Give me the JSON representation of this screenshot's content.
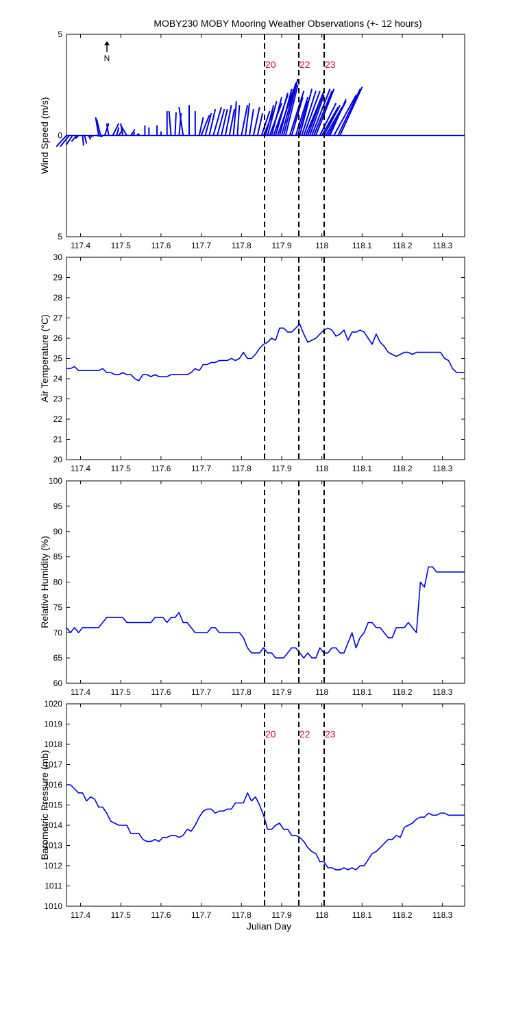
{
  "colors": {
    "series": "#0000dd",
    "marker_text": "#c8102e",
    "axis": "#000000"
  },
  "chart_data": [
    {
      "type": "line",
      "subtype": "wind-stick",
      "title": "MOBY230 MOBY Mooring Weather Observations (+- 12 hours)",
      "ylabel": "Wind Speed (m/s)",
      "xlabel": "",
      "xlim": [
        117.365,
        118.355
      ],
      "ylim": [
        -5,
        5
      ],
      "yticks": [
        -5,
        0,
        5
      ],
      "ytick_labels": [
        "5",
        "0",
        "5"
      ],
      "xticks": [
        117.4,
        117.5,
        117.6,
        117.7,
        117.8,
        117.9,
        118,
        118.1,
        118.2,
        118.3
      ],
      "north_label": "N",
      "marker_labels": [
        "20",
        "22",
        "23"
      ],
      "sticks": [
        [
          117.365,
          -0.5,
          -0.55
        ],
        [
          117.372,
          -0.45,
          -0.55
        ],
        [
          117.38,
          -0.3,
          -0.45
        ],
        [
          117.39,
          -0.25,
          -0.3
        ],
        [
          117.395,
          -0.15,
          -0.15
        ],
        [
          117.405,
          0.05,
          -0.5
        ],
        [
          117.41,
          0.1,
          -0.4
        ],
        [
          117.42,
          0.1,
          -0.2
        ],
        [
          117.425,
          0.05,
          -0.1
        ],
        [
          117.43,
          0.05,
          -0.05
        ],
        [
          117.44,
          0.3,
          -0.05
        ],
        [
          117.445,
          -0.15,
          0.9
        ],
        [
          117.45,
          -0.2,
          0.8
        ],
        [
          117.46,
          0.2,
          0.6
        ],
        [
          117.47,
          -0.1,
          0.6
        ],
        [
          117.48,
          0.3,
          0.6
        ],
        [
          117.49,
          0.1,
          0.4
        ],
        [
          117.495,
          0.2,
          0.3
        ],
        [
          117.505,
          -0.1,
          0.6
        ],
        [
          117.515,
          -0.3,
          0.5
        ],
        [
          117.525,
          0.2,
          0.3
        ],
        [
          117.53,
          0.1,
          0.15
        ],
        [
          117.54,
          0.1,
          0.1
        ],
        [
          117.545,
          0.0,
          0.1
        ],
        [
          117.56,
          0.0,
          0.5
        ],
        [
          117.57,
          0.0,
          0.4
        ],
        [
          117.59,
          0.0,
          0.5
        ],
        [
          117.6,
          0.0,
          0.2
        ],
        [
          117.615,
          0.0,
          1.2
        ],
        [
          117.625,
          -0.1,
          1.2
        ],
        [
          117.635,
          0.05,
          1.15
        ],
        [
          117.645,
          0.1,
          1.1
        ],
        [
          117.655,
          -0.2,
          1.4
        ],
        [
          117.67,
          0.0,
          1.5
        ],
        [
          117.685,
          0.0,
          1.2
        ],
        [
          117.695,
          0.2,
          0.9
        ],
        [
          117.7,
          0.4,
          1.0
        ],
        [
          117.71,
          0.3,
          1.1
        ],
        [
          117.72,
          0.3,
          1.3
        ],
        [
          117.73,
          0.4,
          1.4
        ],
        [
          117.74,
          0.35,
          1.3
        ],
        [
          117.75,
          0.3,
          1.3
        ],
        [
          117.76,
          0.3,
          1.5
        ],
        [
          117.77,
          0.25,
          1.3
        ],
        [
          117.78,
          0.15,
          1.7
        ],
        [
          117.79,
          0.1,
          1.5
        ],
        [
          117.8,
          0.3,
          1.5
        ],
        [
          117.81,
          0.2,
          1.6
        ],
        [
          117.82,
          0.2,
          1.3
        ],
        [
          117.83,
          0.3,
          1.4
        ],
        [
          117.84,
          0.25,
          1.1
        ],
        [
          117.85,
          0.4,
          1.2
        ],
        [
          117.855,
          0.5,
          1.2
        ],
        [
          117.86,
          0.4,
          1.5
        ],
        [
          117.865,
          0.45,
          1.7
        ],
        [
          117.87,
          0.6,
          1.6
        ],
        [
          117.875,
          0.5,
          1.9
        ],
        [
          117.88,
          0.7,
          2.0
        ],
        [
          117.885,
          0.6,
          2.1
        ],
        [
          117.89,
          0.8,
          2.3
        ],
        [
          117.895,
          0.6,
          2.3
        ],
        [
          117.9,
          0.7,
          2.6
        ],
        [
          117.905,
          0.7,
          2.8
        ],
        [
          117.91,
          0.6,
          2.5
        ],
        [
          117.92,
          0.7,
          2.2
        ],
        [
          117.925,
          0.55,
          1.9
        ],
        [
          117.935,
          0.6,
          1.9
        ],
        [
          117.94,
          0.5,
          1.7
        ],
        [
          117.945,
          0.6,
          2.3
        ],
        [
          117.95,
          0.7,
          2.2
        ],
        [
          117.955,
          0.8,
          2.2
        ],
        [
          117.96,
          0.9,
          2.2
        ],
        [
          117.965,
          0.8,
          2.2
        ],
        [
          117.97,
          0.7,
          2.0
        ],
        [
          117.975,
          0.9,
          2.3
        ],
        [
          117.98,
          0.9,
          2.2
        ],
        [
          117.985,
          0.9,
          2.3
        ],
        [
          117.995,
          0.8,
          1.6
        ],
        [
          118.0,
          0.8,
          1.4
        ],
        [
          118.005,
          0.8,
          1.5
        ],
        [
          118.01,
          0.8,
          1.4
        ],
        [
          118.015,
          0.9,
          1.7
        ],
        [
          118.02,
          0.8,
          1.8
        ],
        [
          118.03,
          1.1,
          2.0
        ],
        [
          118.04,
          1.1,
          2.3
        ],
        [
          118.045,
          1.1,
          2.4
        ]
      ]
    },
    {
      "type": "line",
      "ylabel": "Air Temperature (°C)",
      "xlabel": "",
      "xlim": [
        117.365,
        118.355
      ],
      "ylim": [
        20,
        30
      ],
      "yticks": [
        20,
        21,
        22,
        23,
        24,
        25,
        26,
        27,
        28,
        29,
        30
      ],
      "xticks": [
        117.4,
        117.5,
        117.6,
        117.7,
        117.8,
        117.9,
        118,
        118.1,
        118.2,
        118.3
      ],
      "x": [
        117.365,
        117.375,
        117.385,
        117.395,
        117.405,
        117.415,
        117.425,
        117.435,
        117.445,
        117.455,
        117.465,
        117.475,
        117.485,
        117.495,
        117.505,
        117.515,
        117.525,
        117.535,
        117.545,
        117.555,
        117.565,
        117.575,
        117.585,
        117.595,
        117.605,
        117.615,
        117.625,
        117.635,
        117.645,
        117.655,
        117.665,
        117.675,
        117.685,
        117.695,
        117.705,
        117.715,
        117.725,
        117.735,
        117.745,
        117.755,
        117.765,
        117.775,
        117.785,
        117.795,
        117.805,
        117.815,
        117.825,
        117.835,
        117.845,
        117.855,
        117.865,
        117.875,
        117.885,
        117.895,
        117.905,
        117.915,
        117.925,
        117.935,
        117.945,
        117.955,
        117.965,
        117.975,
        117.985,
        117.995,
        118.005,
        118.015,
        118.025,
        118.035,
        118.045,
        118.055,
        118.065,
        118.075,
        118.085,
        118.095,
        118.105,
        118.115,
        118.125,
        118.135,
        118.145,
        118.155,
        118.165,
        118.175,
        118.185,
        118.195,
        118.205,
        118.215,
        118.225,
        118.235,
        118.245,
        118.255,
        118.265,
        118.275,
        118.285,
        118.295,
        118.305,
        118.315,
        118.325,
        118.335,
        118.345,
        118.355
      ],
      "values": [
        24.5,
        24.5,
        24.6,
        24.4,
        24.4,
        24.4,
        24.4,
        24.4,
        24.4,
        24.5,
        24.3,
        24.3,
        24.2,
        24.2,
        24.3,
        24.2,
        24.2,
        24.0,
        23.9,
        24.2,
        24.2,
        24.1,
        24.2,
        24.1,
        24.1,
        24.1,
        24.2,
        24.2,
        24.2,
        24.2,
        24.2,
        24.3,
        24.5,
        24.4,
        24.7,
        24.7,
        24.8,
        24.8,
        24.9,
        24.9,
        24.9,
        25.0,
        24.9,
        25.0,
        25.3,
        25.0,
        25.0,
        25.2,
        25.5,
        25.7,
        25.8,
        26.0,
        25.9,
        26.5,
        26.5,
        26.3,
        26.3,
        26.5,
        26.7,
        26.2,
        25.8,
        25.9,
        26.0,
        26.2,
        26.4,
        26.5,
        26.4,
        26.1,
        26.2,
        26.4,
        25.9,
        26.3,
        26.3,
        26.4,
        26.3,
        26.0,
        25.7,
        26.2,
        25.8,
        25.6,
        25.3,
        25.2,
        25.1,
        25.2,
        25.3,
        25.3,
        25.2,
        25.3,
        25.3,
        25.3,
        25.3,
        25.3,
        25.3,
        25.3,
        25.0,
        24.9,
        24.5,
        24.3,
        24.3,
        24.3
      ]
    },
    {
      "type": "line",
      "ylabel": "Relative Humidity (%)",
      "xlabel": "",
      "xlim": [
        117.365,
        118.355
      ],
      "ylim": [
        60,
        100
      ],
      "yticks": [
        60,
        65,
        70,
        75,
        80,
        85,
        90,
        95,
        100
      ],
      "xticks": [
        117.4,
        117.5,
        117.6,
        117.7,
        117.8,
        117.9,
        118,
        118.1,
        118.2,
        118.3
      ],
      "x": [
        117.365,
        117.375,
        117.385,
        117.395,
        117.405,
        117.415,
        117.425,
        117.435,
        117.445,
        117.455,
        117.465,
        117.475,
        117.485,
        117.495,
        117.505,
        117.515,
        117.525,
        117.535,
        117.545,
        117.555,
        117.565,
        117.575,
        117.585,
        117.595,
        117.605,
        117.615,
        117.625,
        117.635,
        117.645,
        117.655,
        117.665,
        117.675,
        117.685,
        117.695,
        117.705,
        117.715,
        117.725,
        117.735,
        117.745,
        117.755,
        117.765,
        117.775,
        117.785,
        117.795,
        117.805,
        117.815,
        117.825,
        117.835,
        117.845,
        117.855,
        117.865,
        117.875,
        117.885,
        117.895,
        117.905,
        117.915,
        117.925,
        117.935,
        117.945,
        117.955,
        117.965,
        117.975,
        117.985,
        117.995,
        118.005,
        118.015,
        118.025,
        118.035,
        118.045,
        118.055,
        118.065,
        118.075,
        118.085,
        118.095,
        118.105,
        118.115,
        118.125,
        118.135,
        118.145,
        118.155,
        118.165,
        118.175,
        118.185,
        118.195,
        118.205,
        118.215,
        118.225,
        118.235,
        118.245,
        118.255,
        118.265,
        118.275,
        118.285,
        118.295,
        118.305,
        118.315,
        118.325,
        118.335,
        118.345,
        118.355
      ],
      "values": [
        71,
        70,
        71,
        70,
        71,
        71,
        71,
        71,
        71,
        72,
        73,
        73,
        73,
        73,
        73,
        72,
        72,
        72,
        72,
        72,
        72,
        72,
        73,
        73,
        73,
        72,
        73,
        73,
        74,
        72,
        72,
        71,
        70,
        70,
        70,
        70,
        71,
        71,
        70,
        70,
        70,
        70,
        70,
        70,
        69,
        67,
        66,
        66,
        66,
        67,
        66,
        66,
        65,
        65,
        65,
        66,
        67,
        67,
        66,
        65,
        66,
        65,
        65,
        67,
        66,
        66,
        67,
        67,
        66,
        66,
        68,
        70,
        67,
        69,
        70,
        72,
        72,
        71,
        71,
        70,
        69,
        69,
        71,
        71,
        71,
        72,
        71,
        70,
        80,
        79,
        83,
        83,
        82,
        82,
        82,
        82,
        82,
        82,
        82,
        82
      ]
    },
    {
      "type": "line",
      "ylabel": "Barometric Pressure (mb)",
      "xlabel": "Julian Day",
      "xlim": [
        117.365,
        118.355
      ],
      "ylim": [
        1010,
        1020
      ],
      "yticks": [
        1010,
        1011,
        1012,
        1013,
        1014,
        1015,
        1016,
        1017,
        1018,
        1019,
        1020
      ],
      "xticks": [
        117.4,
        117.5,
        117.6,
        117.7,
        117.8,
        117.9,
        118,
        118.1,
        118.2,
        118.3
      ],
      "marker_labels": [
        "20",
        "22",
        "23"
      ],
      "x": [
        117.365,
        117.375,
        117.385,
        117.395,
        117.405,
        117.415,
        117.425,
        117.435,
        117.445,
        117.455,
        117.465,
        117.475,
        117.485,
        117.495,
        117.505,
        117.515,
        117.525,
        117.535,
        117.545,
        117.555,
        117.565,
        117.575,
        117.585,
        117.595,
        117.605,
        117.615,
        117.625,
        117.635,
        117.645,
        117.655,
        117.665,
        117.675,
        117.685,
        117.695,
        117.705,
        117.715,
        117.725,
        117.735,
        117.745,
        117.755,
        117.765,
        117.775,
        117.785,
        117.795,
        117.805,
        117.815,
        117.825,
        117.835,
        117.845,
        117.855,
        117.865,
        117.875,
        117.885,
        117.895,
        117.905,
        117.915,
        117.925,
        117.935,
        117.945,
        117.955,
        117.965,
        117.975,
        117.985,
        117.995,
        118.005,
        118.015,
        118.025,
        118.035,
        118.045,
        118.055,
        118.065,
        118.075,
        118.085,
        118.095,
        118.105,
        118.115,
        118.125,
        118.135,
        118.145,
        118.155,
        118.165,
        118.175,
        118.185,
        118.195,
        118.205,
        118.215,
        118.225,
        118.235,
        118.245,
        118.255,
        118.265,
        118.275,
        118.285,
        118.295,
        118.305,
        118.315,
        118.325,
        118.335,
        118.345,
        118.355
      ],
      "values": [
        1016.0,
        1016.0,
        1015.8,
        1015.6,
        1015.6,
        1015.2,
        1015.4,
        1015.3,
        1014.9,
        1014.9,
        1014.6,
        1014.2,
        1014.1,
        1014.0,
        1014.0,
        1014.0,
        1013.6,
        1013.6,
        1013.6,
        1013.3,
        1013.2,
        1013.2,
        1013.3,
        1013.2,
        1013.4,
        1013.4,
        1013.5,
        1013.5,
        1013.4,
        1013.5,
        1013.8,
        1013.7,
        1014.0,
        1014.4,
        1014.7,
        1014.8,
        1014.8,
        1014.6,
        1014.7,
        1014.7,
        1014.8,
        1014.8,
        1015.1,
        1015.1,
        1015.1,
        1015.6,
        1015.2,
        1015.4,
        1015.0,
        1014.5,
        1013.8,
        1013.8,
        1014.0,
        1014.1,
        1013.8,
        1013.8,
        1013.5,
        1013.5,
        1013.4,
        1013.2,
        1012.9,
        1012.7,
        1012.6,
        1012.2,
        1012.2,
        1011.9,
        1011.9,
        1011.8,
        1011.8,
        1011.9,
        1011.8,
        1011.9,
        1011.8,
        1012.0,
        1012.0,
        1012.3,
        1012.6,
        1012.7,
        1012.9,
        1013.1,
        1013.3,
        1013.3,
        1013.5,
        1013.4,
        1013.9,
        1014.0,
        1014.1,
        1014.3,
        1014.4,
        1014.4,
        1014.6,
        1014.5,
        1014.5,
        1014.6,
        1014.6,
        1014.5,
        1014.5,
        1014.5,
        1014.5,
        1014.5
      ]
    }
  ],
  "event_days": [
    117.857,
    117.937,
    118.005
  ]
}
